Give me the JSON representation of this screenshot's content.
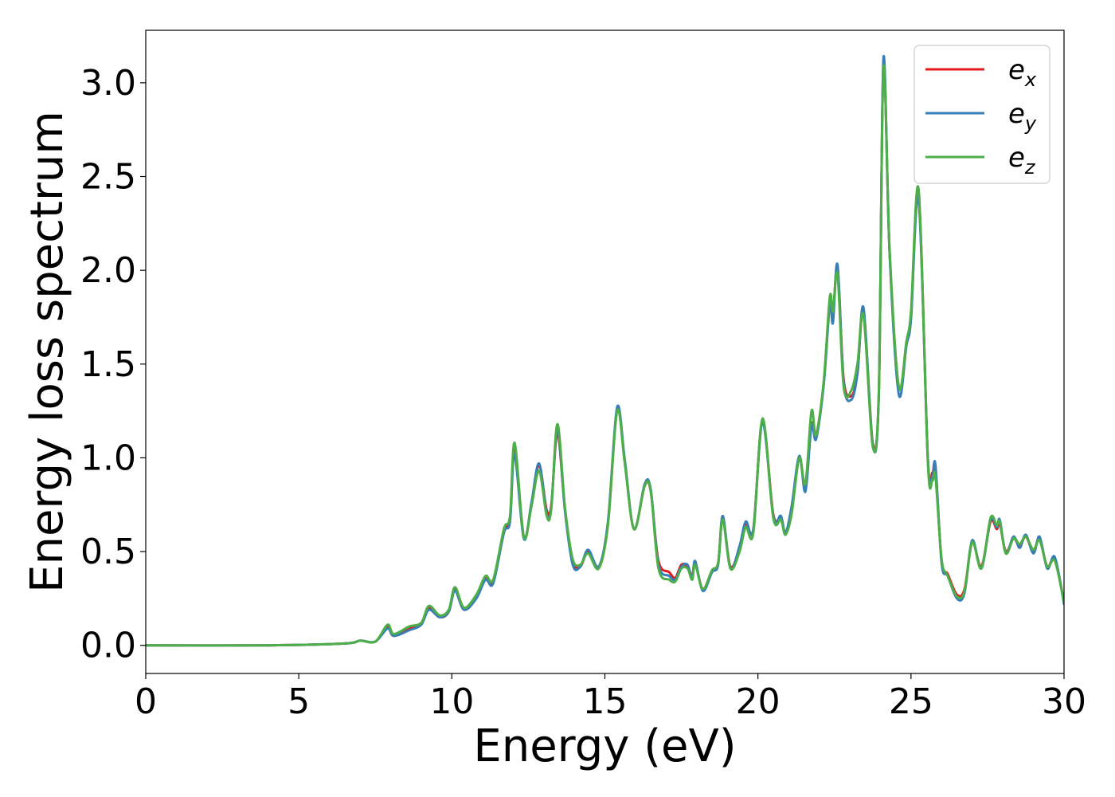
{
  "chart_data": {
    "type": "line",
    "title": "",
    "xlabel": "Energy (eV)",
    "ylabel": "Energy loss spectrum",
    "xlim": [
      0,
      30
    ],
    "ylim": [
      -0.15,
      3.28
    ],
    "x_ticks": [
      0,
      5,
      10,
      15,
      20,
      25,
      30
    ],
    "x_tick_labels": [
      "0",
      "5",
      "10",
      "15",
      "20",
      "25",
      "30"
    ],
    "y_ticks": [
      0.0,
      0.5,
      1.0,
      1.5,
      2.0,
      2.5,
      3.0
    ],
    "y_tick_labels": [
      "0.0",
      "0.5",
      "1.0",
      "1.5",
      "2.0",
      "2.5",
      "3.0"
    ],
    "grid": false,
    "legend_position": "top-right",
    "series": [
      {
        "name": "e_x",
        "label_base": "e",
        "label_sub": "x",
        "color": "#e41a1c",
        "points": [
          [
            0,
            0
          ],
          [
            4,
            0.0
          ],
          [
            6.5,
            0.01
          ],
          [
            7,
            0.025
          ],
          [
            7.5,
            0.02
          ],
          [
            7.9,
            0.1
          ],
          [
            8.1,
            0.06
          ],
          [
            8.6,
            0.09
          ],
          [
            9.0,
            0.12
          ],
          [
            9.25,
            0.2
          ],
          [
            9.6,
            0.15
          ],
          [
            9.9,
            0.18
          ],
          [
            10.1,
            0.3
          ],
          [
            10.4,
            0.19
          ],
          [
            10.8,
            0.26
          ],
          [
            11.1,
            0.36
          ],
          [
            11.35,
            0.34
          ],
          [
            11.7,
            0.6
          ],
          [
            11.9,
            0.68
          ],
          [
            12.05,
            1.05
          ],
          [
            12.35,
            0.58
          ],
          [
            12.6,
            0.75
          ],
          [
            12.85,
            0.96
          ],
          [
            13.1,
            0.72
          ],
          [
            13.25,
            0.75
          ],
          [
            13.45,
            1.13
          ],
          [
            13.7,
            0.72
          ],
          [
            13.95,
            0.45
          ],
          [
            14.2,
            0.42
          ],
          [
            14.45,
            0.5
          ],
          [
            14.8,
            0.42
          ],
          [
            15.1,
            0.65
          ],
          [
            15.4,
            1.26
          ],
          [
            15.65,
            0.98
          ],
          [
            15.95,
            0.62
          ],
          [
            16.3,
            0.85
          ],
          [
            16.5,
            0.82
          ],
          [
            16.75,
            0.45
          ],
          [
            17.1,
            0.39
          ],
          [
            17.3,
            0.36
          ],
          [
            17.5,
            0.43
          ],
          [
            17.7,
            0.42
          ],
          [
            17.85,
            0.37
          ],
          [
            17.95,
            0.44
          ],
          [
            18.2,
            0.3
          ],
          [
            18.5,
            0.4
          ],
          [
            18.7,
            0.44
          ],
          [
            18.85,
            0.68
          ],
          [
            19.1,
            0.42
          ],
          [
            19.4,
            0.52
          ],
          [
            19.6,
            0.65
          ],
          [
            19.85,
            0.62
          ],
          [
            20.15,
            1.2
          ],
          [
            20.5,
            0.7
          ],
          [
            20.75,
            0.68
          ],
          [
            20.9,
            0.6
          ],
          [
            21.1,
            0.72
          ],
          [
            21.35,
            1.0
          ],
          [
            21.55,
            0.85
          ],
          [
            21.75,
            1.18
          ],
          [
            21.9,
            1.12
          ],
          [
            22.15,
            1.4
          ],
          [
            22.35,
            1.85
          ],
          [
            22.45,
            1.75
          ],
          [
            22.6,
            2.02
          ],
          [
            22.8,
            1.42
          ],
          [
            23.05,
            1.33
          ],
          [
            23.25,
            1.45
          ],
          [
            23.45,
            1.78
          ],
          [
            23.75,
            1.08
          ],
          [
            23.95,
            1.35
          ],
          [
            24.1,
            3.1
          ],
          [
            24.3,
            2.1
          ],
          [
            24.6,
            1.38
          ],
          [
            24.85,
            1.6
          ],
          [
            25.0,
            1.75
          ],
          [
            25.25,
            2.42
          ],
          [
            25.55,
            1.0
          ],
          [
            25.7,
            0.92
          ],
          [
            25.8,
            0.95
          ],
          [
            26.0,
            0.45
          ],
          [
            26.2,
            0.38
          ],
          [
            26.5,
            0.27
          ],
          [
            26.75,
            0.3
          ],
          [
            27.0,
            0.55
          ],
          [
            27.3,
            0.42
          ],
          [
            27.6,
            0.66
          ],
          [
            27.8,
            0.62
          ],
          [
            27.9,
            0.65
          ],
          [
            28.1,
            0.5
          ],
          [
            28.35,
            0.57
          ],
          [
            28.55,
            0.53
          ],
          [
            28.75,
            0.58
          ],
          [
            29.0,
            0.5
          ],
          [
            29.2,
            0.57
          ],
          [
            29.45,
            0.42
          ],
          [
            29.7,
            0.46
          ],
          [
            30.0,
            0.23
          ]
        ]
      },
      {
        "name": "e_y",
        "label_base": "e",
        "label_sub": "y",
        "color": "#377eb8",
        "points": [
          [
            0,
            0
          ],
          [
            4,
            0.0
          ],
          [
            6.5,
            0.01
          ],
          [
            7,
            0.025
          ],
          [
            7.5,
            0.02
          ],
          [
            7.9,
            0.09
          ],
          [
            8.1,
            0.05
          ],
          [
            8.6,
            0.08
          ],
          [
            9.0,
            0.11
          ],
          [
            9.25,
            0.19
          ],
          [
            9.6,
            0.15
          ],
          [
            9.9,
            0.18
          ],
          [
            10.1,
            0.29
          ],
          [
            10.4,
            0.19
          ],
          [
            10.8,
            0.25
          ],
          [
            11.1,
            0.35
          ],
          [
            11.35,
            0.33
          ],
          [
            11.7,
            0.6
          ],
          [
            11.9,
            0.66
          ],
          [
            12.05,
            1.02
          ],
          [
            12.35,
            0.57
          ],
          [
            12.6,
            0.76
          ],
          [
            12.85,
            0.97
          ],
          [
            13.1,
            0.7
          ],
          [
            13.25,
            0.74
          ],
          [
            13.45,
            1.15
          ],
          [
            13.7,
            0.71
          ],
          [
            13.95,
            0.43
          ],
          [
            14.2,
            0.42
          ],
          [
            14.45,
            0.51
          ],
          [
            14.8,
            0.42
          ],
          [
            15.1,
            0.66
          ],
          [
            15.4,
            1.27
          ],
          [
            15.65,
            0.99
          ],
          [
            15.95,
            0.62
          ],
          [
            16.3,
            0.86
          ],
          [
            16.5,
            0.83
          ],
          [
            16.75,
            0.43
          ],
          [
            17.1,
            0.37
          ],
          [
            17.3,
            0.35
          ],
          [
            17.5,
            0.42
          ],
          [
            17.7,
            0.43
          ],
          [
            17.85,
            0.36
          ],
          [
            17.95,
            0.45
          ],
          [
            18.2,
            0.29
          ],
          [
            18.5,
            0.39
          ],
          [
            18.7,
            0.43
          ],
          [
            18.85,
            0.69
          ],
          [
            19.1,
            0.41
          ],
          [
            19.4,
            0.53
          ],
          [
            19.6,
            0.66
          ],
          [
            19.85,
            0.62
          ],
          [
            20.15,
            1.19
          ],
          [
            20.5,
            0.69
          ],
          [
            20.75,
            0.69
          ],
          [
            20.9,
            0.6
          ],
          [
            21.1,
            0.74
          ],
          [
            21.35,
            1.01
          ],
          [
            21.55,
            0.82
          ],
          [
            21.75,
            1.17
          ],
          [
            21.9,
            1.1
          ],
          [
            22.15,
            1.39
          ],
          [
            22.35,
            1.82
          ],
          [
            22.45,
            1.72
          ],
          [
            22.6,
            2.03
          ],
          [
            22.8,
            1.4
          ],
          [
            23.05,
            1.31
          ],
          [
            23.25,
            1.45
          ],
          [
            23.45,
            1.8
          ],
          [
            23.75,
            1.07
          ],
          [
            23.95,
            1.34
          ],
          [
            24.1,
            3.13
          ],
          [
            24.3,
            2.1
          ],
          [
            24.6,
            1.34
          ],
          [
            24.85,
            1.6
          ],
          [
            25.0,
            1.74
          ],
          [
            25.25,
            2.38
          ],
          [
            25.55,
            1.0
          ],
          [
            25.7,
            0.9
          ],
          [
            25.8,
            0.96
          ],
          [
            26.0,
            0.44
          ],
          [
            26.2,
            0.37
          ],
          [
            26.5,
            0.25
          ],
          [
            26.75,
            0.28
          ],
          [
            27.0,
            0.56
          ],
          [
            27.3,
            0.41
          ],
          [
            27.6,
            0.67
          ],
          [
            27.8,
            0.63
          ],
          [
            27.9,
            0.67
          ],
          [
            28.1,
            0.49
          ],
          [
            28.35,
            0.58
          ],
          [
            28.55,
            0.52
          ],
          [
            28.75,
            0.59
          ],
          [
            29.0,
            0.49
          ],
          [
            29.2,
            0.58
          ],
          [
            29.45,
            0.41
          ],
          [
            29.7,
            0.47
          ],
          [
            30.0,
            0.22
          ]
        ]
      },
      {
        "name": "e_z",
        "label_base": "e",
        "label_sub": "z",
        "color": "#4daf4a",
        "points": [
          [
            0,
            0
          ],
          [
            4,
            0.0
          ],
          [
            6.5,
            0.01
          ],
          [
            7,
            0.025
          ],
          [
            7.5,
            0.02
          ],
          [
            7.9,
            0.11
          ],
          [
            8.1,
            0.06
          ],
          [
            8.6,
            0.1
          ],
          [
            9.0,
            0.12
          ],
          [
            9.25,
            0.21
          ],
          [
            9.6,
            0.16
          ],
          [
            9.9,
            0.19
          ],
          [
            10.1,
            0.31
          ],
          [
            10.4,
            0.2
          ],
          [
            10.8,
            0.27
          ],
          [
            11.1,
            0.37
          ],
          [
            11.35,
            0.35
          ],
          [
            11.7,
            0.62
          ],
          [
            11.9,
            0.69
          ],
          [
            12.05,
            1.08
          ],
          [
            12.35,
            0.58
          ],
          [
            12.6,
            0.74
          ],
          [
            12.85,
            0.93
          ],
          [
            13.1,
            0.69
          ],
          [
            13.25,
            0.73
          ],
          [
            13.45,
            1.18
          ],
          [
            13.7,
            0.73
          ],
          [
            13.95,
            0.46
          ],
          [
            14.2,
            0.43
          ],
          [
            14.45,
            0.49
          ],
          [
            14.8,
            0.41
          ],
          [
            15.1,
            0.64
          ],
          [
            15.4,
            1.25
          ],
          [
            15.65,
            0.97
          ],
          [
            15.95,
            0.62
          ],
          [
            16.3,
            0.85
          ],
          [
            16.5,
            0.82
          ],
          [
            16.75,
            0.41
          ],
          [
            17.1,
            0.35
          ],
          [
            17.3,
            0.34
          ],
          [
            17.5,
            0.41
          ],
          [
            17.7,
            0.41
          ],
          [
            17.85,
            0.35
          ],
          [
            17.95,
            0.43
          ],
          [
            18.2,
            0.3
          ],
          [
            18.5,
            0.4
          ],
          [
            18.7,
            0.44
          ],
          [
            18.85,
            0.67
          ],
          [
            19.1,
            0.41
          ],
          [
            19.4,
            0.5
          ],
          [
            19.6,
            0.63
          ],
          [
            19.85,
            0.6
          ],
          [
            20.15,
            1.21
          ],
          [
            20.5,
            0.68
          ],
          [
            20.75,
            0.67
          ],
          [
            20.9,
            0.59
          ],
          [
            21.1,
            0.7
          ],
          [
            21.35,
            1.0
          ],
          [
            21.55,
            0.86
          ],
          [
            21.75,
            1.25
          ],
          [
            21.9,
            1.12
          ],
          [
            22.15,
            1.41
          ],
          [
            22.35,
            1.86
          ],
          [
            22.45,
            1.78
          ],
          [
            22.6,
            1.98
          ],
          [
            22.8,
            1.38
          ],
          [
            23.05,
            1.36
          ],
          [
            23.25,
            1.5
          ],
          [
            23.45,
            1.76
          ],
          [
            23.75,
            1.06
          ],
          [
            23.95,
            1.36
          ],
          [
            24.1,
            3.08
          ],
          [
            24.3,
            2.12
          ],
          [
            24.6,
            1.38
          ],
          [
            24.85,
            1.62
          ],
          [
            25.0,
            1.78
          ],
          [
            25.25,
            2.43
          ],
          [
            25.55,
            0.98
          ],
          [
            25.7,
            0.88
          ],
          [
            25.8,
            0.9
          ],
          [
            26.0,
            0.46
          ],
          [
            26.2,
            0.37
          ],
          [
            26.5,
            0.26
          ],
          [
            26.75,
            0.29
          ],
          [
            27.0,
            0.55
          ],
          [
            27.3,
            0.41
          ],
          [
            27.6,
            0.68
          ],
          [
            27.8,
            0.64
          ],
          [
            27.9,
            0.66
          ],
          [
            28.1,
            0.49
          ],
          [
            28.35,
            0.57
          ],
          [
            28.55,
            0.54
          ],
          [
            28.75,
            0.58
          ],
          [
            29.0,
            0.51
          ],
          [
            29.2,
            0.56
          ],
          [
            29.45,
            0.42
          ],
          [
            29.7,
            0.45
          ],
          [
            30.0,
            0.23
          ]
        ]
      }
    ]
  }
}
